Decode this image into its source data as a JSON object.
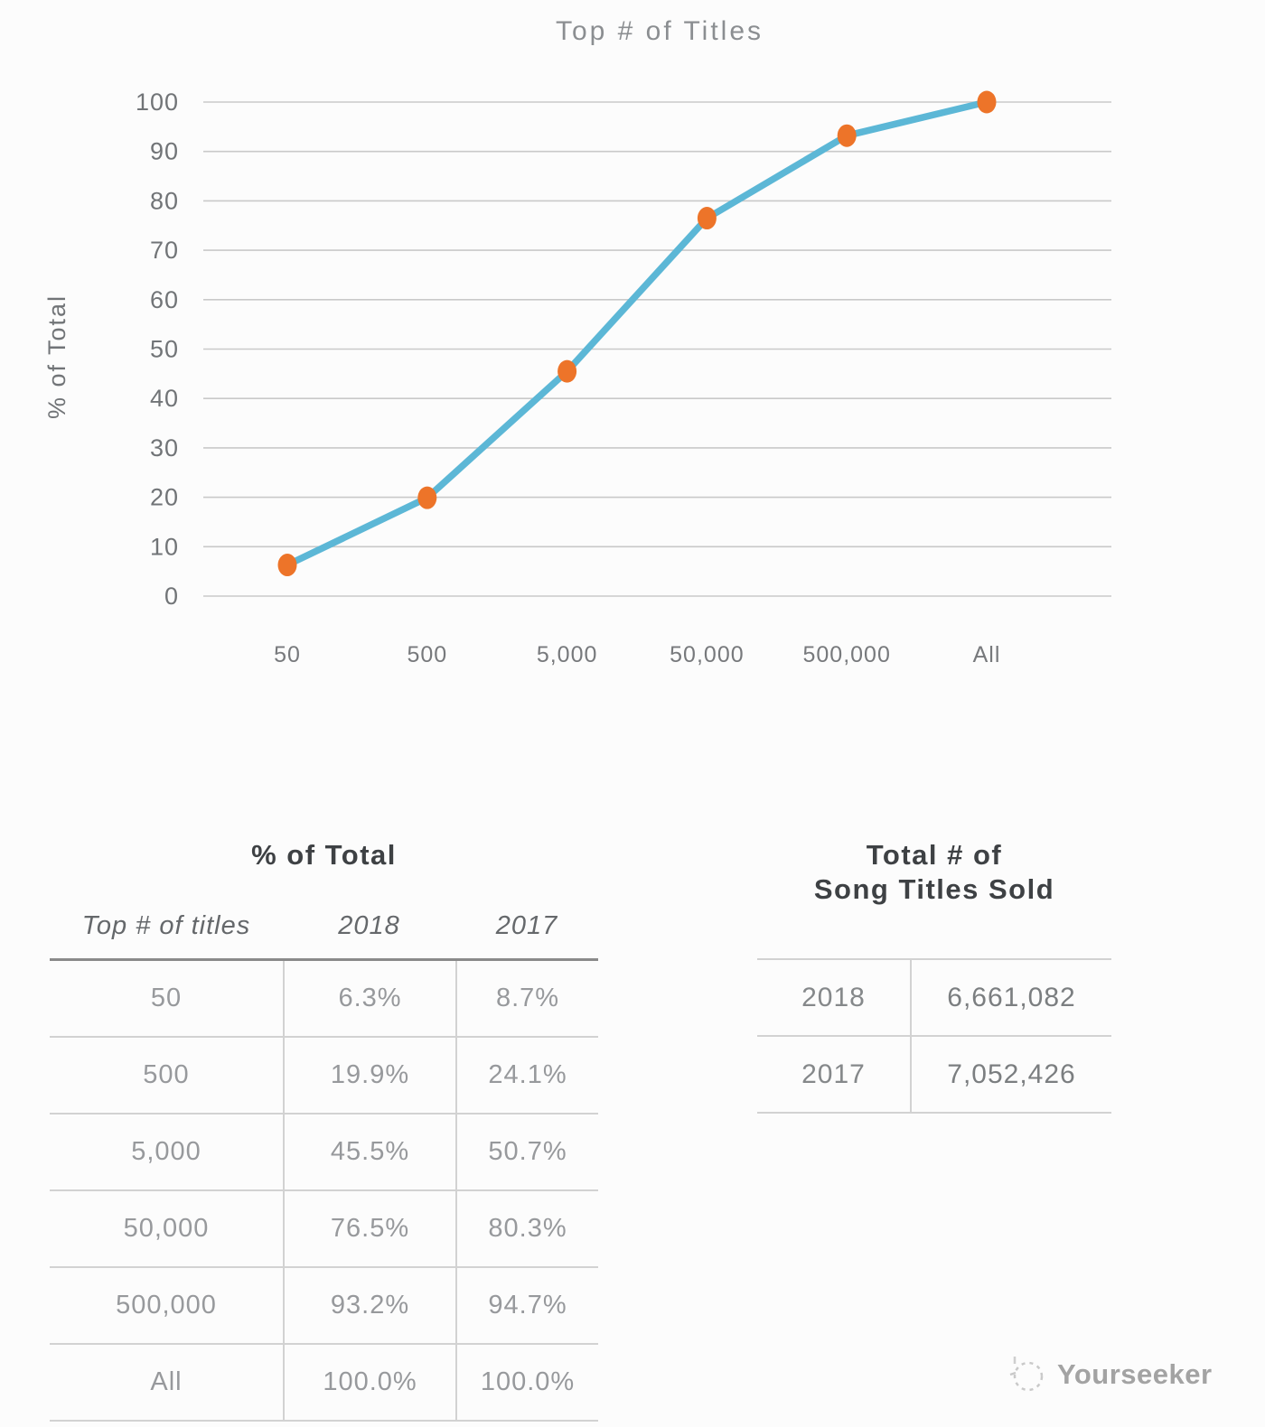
{
  "chart_data": [
    {
      "type": "line",
      "title": "Top # of Titles",
      "xlabel": "",
      "ylabel": "% of Total",
      "categories": [
        "50",
        "500",
        "5,000",
        "50,000",
        "500,000",
        "All"
      ],
      "series": [
        {
          "name": "2018",
          "values": [
            6.3,
            19.9,
            45.5,
            76.5,
            93.2,
            100.0
          ]
        }
      ],
      "ylim": [
        0,
        100
      ],
      "ytick_step": 10,
      "grid": "horizontal",
      "legend": "none",
      "line_color": "#5cb7d6",
      "marker_color": "#ed7429",
      "gridline_color": "#c9c9c9"
    },
    {
      "type": "table",
      "title": "% of Total",
      "columns": [
        "Top # of titles",
        "2018",
        "2017"
      ],
      "rows": [
        [
          "50",
          "6.3%",
          "8.7%"
        ],
        [
          "500",
          "19.9%",
          "24.1%"
        ],
        [
          "5,000",
          "45.5%",
          "50.7%"
        ],
        [
          "50,000",
          "76.5%",
          "80.3%"
        ],
        [
          "500,000",
          "93.2%",
          "94.7%"
        ],
        [
          "All",
          "100.0%",
          "100.0%"
        ]
      ]
    },
    {
      "type": "table",
      "title_lines": [
        "Total # of",
        "Song Titles Sold"
      ],
      "rows": [
        [
          "2018",
          "6,661,082"
        ],
        [
          "2017",
          "7,052,426"
        ]
      ]
    }
  ],
  "watermark": {
    "text": "Yourseeker"
  }
}
